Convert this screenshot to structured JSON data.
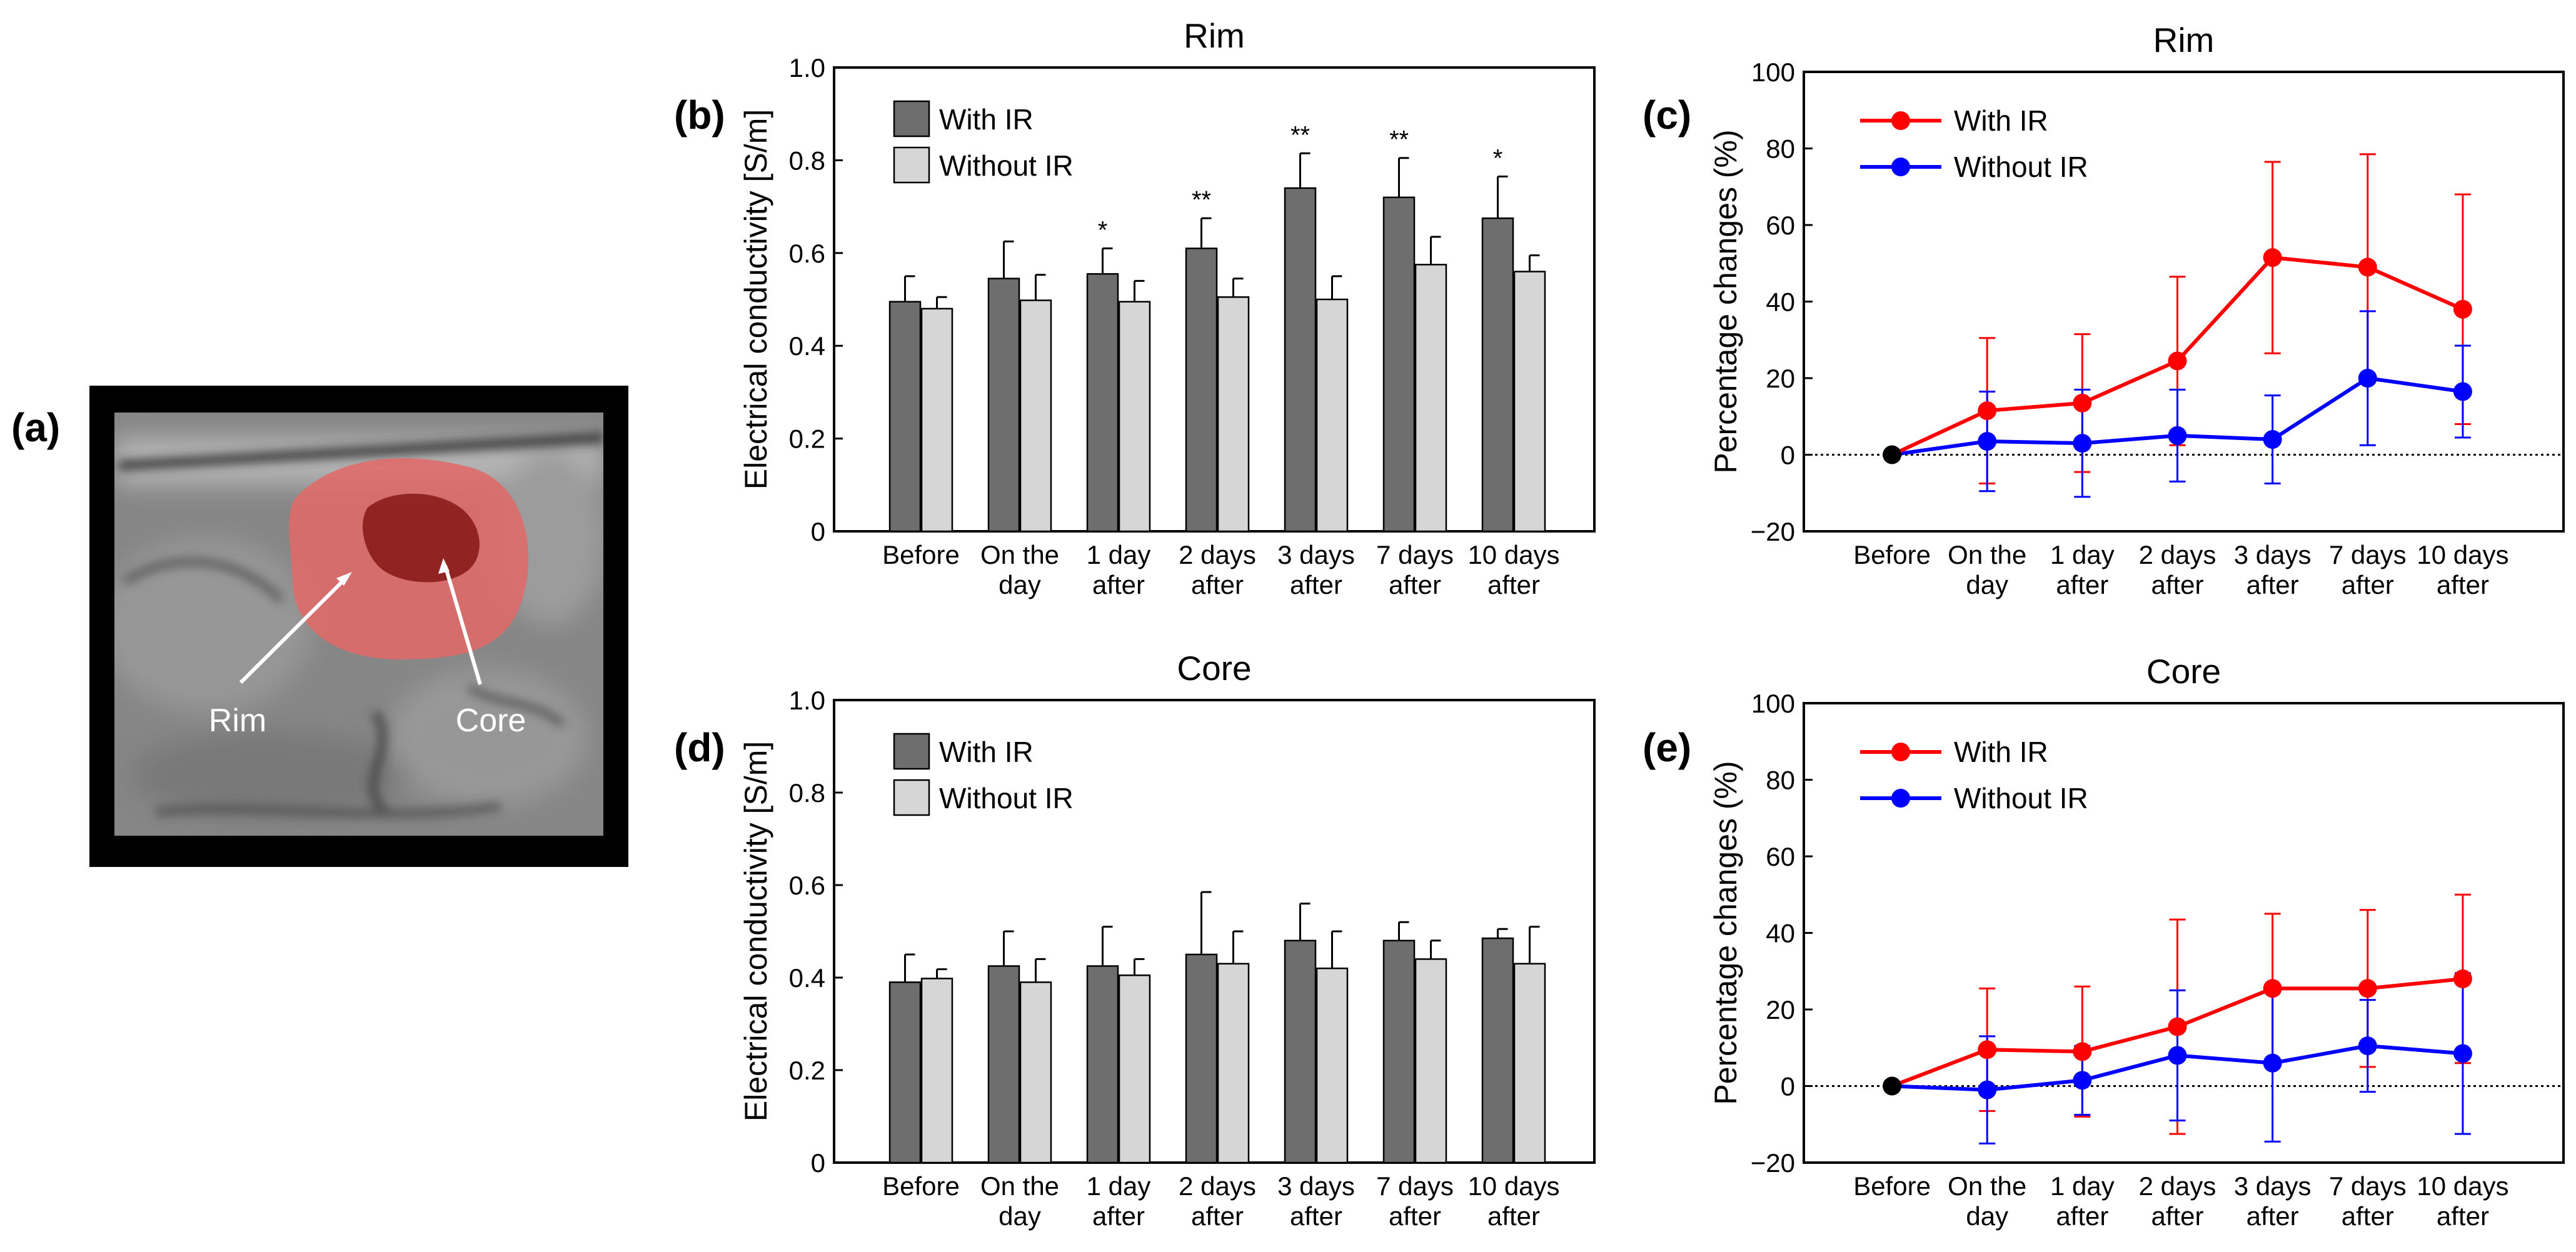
{
  "panel_labels": {
    "a": "(a)",
    "b": "(b)",
    "c": "(c)",
    "d": "(d)",
    "e": "(e)"
  },
  "mri": {
    "rim_label": "Rim",
    "core_label": "Core",
    "rim_color": "#e06a6a",
    "core_color": "#8e2020"
  },
  "colors": {
    "with_ir_bar": "#6e6e6e",
    "without_ir_bar": "#d6d6d6",
    "with_ir_line": "#ff0000",
    "without_ir_line": "#0000ff",
    "baseline_point": "#000000"
  },
  "chart_data": [
    {
      "id": "b",
      "type": "bar",
      "title": "Rim",
      "ylabel": "Electrical conductivity [S/m]",
      "ylim": [
        0,
        1.0
      ],
      "yticks": [
        "0",
        "0.2",
        "0.4",
        "0.6",
        "0.8",
        "1.0"
      ],
      "categories": [
        [
          "Before"
        ],
        [
          "On the",
          "day"
        ],
        [
          "1 day",
          "after"
        ],
        [
          "2 days",
          "after"
        ],
        [
          "3 days",
          "after"
        ],
        [
          "7 days",
          "after"
        ],
        [
          "10 days",
          "after"
        ]
      ],
      "series": [
        {
          "name": "With IR",
          "values": [
            0.495,
            0.545,
            0.555,
            0.61,
            0.74,
            0.72,
            0.675
          ],
          "errors": [
            0.055,
            0.08,
            0.055,
            0.065,
            0.075,
            0.085,
            0.09
          ]
        },
        {
          "name": "Without IR",
          "values": [
            0.48,
            0.498,
            0.495,
            0.505,
            0.5,
            0.575,
            0.56
          ],
          "errors": [
            0.025,
            0.055,
            0.045,
            0.04,
            0.05,
            0.06,
            0.035
          ]
        }
      ],
      "significance": [
        "",
        "",
        "*",
        "**",
        "**",
        "**",
        "*"
      ],
      "legend": "top-left"
    },
    {
      "id": "c",
      "type": "line",
      "title": "Rim",
      "ylabel": "Percentage changes (%)",
      "ylim": [
        -20,
        100
      ],
      "yticks": [
        "−20",
        "0",
        "20",
        "40",
        "60",
        "80",
        "100"
      ],
      "categories": [
        [
          "Before"
        ],
        [
          "On the",
          "day"
        ],
        [
          "1 day",
          "after"
        ],
        [
          "2 days",
          "after"
        ],
        [
          "3 days",
          "after"
        ],
        [
          "7 days",
          "after"
        ],
        [
          "10 days",
          "after"
        ]
      ],
      "series": [
        {
          "name": "With IR",
          "values": [
            0,
            11.5,
            13.5,
            24.5,
            51.5,
            49,
            38
          ],
          "errors": [
            0,
            19,
            18,
            22,
            25,
            29.5,
            30
          ]
        },
        {
          "name": "Without IR",
          "values": [
            0,
            3.5,
            3,
            5,
            4,
            20,
            16.5
          ],
          "errors": [
            0,
            13,
            14,
            12,
            11.5,
            17.5,
            12
          ]
        }
      ],
      "baseline": 0,
      "legend": "top-left"
    },
    {
      "id": "d",
      "type": "bar",
      "title": "Core",
      "ylabel": "Electrical conductivity [S/m]",
      "ylim": [
        0,
        1.0
      ],
      "yticks": [
        "0",
        "0.2",
        "0.4",
        "0.6",
        "0.8",
        "1.0"
      ],
      "categories": [
        [
          "Before"
        ],
        [
          "On the",
          "day"
        ],
        [
          "1 day",
          "after"
        ],
        [
          "2 days",
          "after"
        ],
        [
          "3 days",
          "after"
        ],
        [
          "7 days",
          "after"
        ],
        [
          "10 days",
          "after"
        ]
      ],
      "series": [
        {
          "name": "With IR",
          "values": [
            0.39,
            0.425,
            0.425,
            0.45,
            0.48,
            0.48,
            0.485
          ],
          "errors": [
            0.06,
            0.075,
            0.085,
            0.135,
            0.08,
            0.04,
            0.02
          ]
        },
        {
          "name": "Without IR",
          "values": [
            0.398,
            0.39,
            0.405,
            0.43,
            0.42,
            0.44,
            0.43
          ],
          "errors": [
            0.02,
            0.05,
            0.035,
            0.07,
            0.08,
            0.04,
            0.08
          ]
        }
      ],
      "significance": [
        "",
        "",
        "",
        "",
        "",
        "",
        ""
      ],
      "legend": "top-left"
    },
    {
      "id": "e",
      "type": "line",
      "title": "Core",
      "ylabel": "Percentage changes (%)",
      "ylim": [
        -20,
        100
      ],
      "yticks": [
        "−20",
        "0",
        "20",
        "40",
        "60",
        "80",
        "100"
      ],
      "categories": [
        [
          "Before"
        ],
        [
          "On the",
          "day"
        ],
        [
          "1 day",
          "after"
        ],
        [
          "2 days",
          "after"
        ],
        [
          "3 days",
          "after"
        ],
        [
          "7 days",
          "after"
        ],
        [
          "10 days",
          "after"
        ]
      ],
      "series": [
        {
          "name": "With IR",
          "values": [
            0,
            9.5,
            9,
            15.5,
            25.5,
            25.5,
            28
          ],
          "errors": [
            0,
            16,
            17,
            28,
            19.5,
            20.5,
            22
          ]
        },
        {
          "name": "Without IR",
          "values": [
            0,
            -1,
            1.5,
            8,
            6,
            10.5,
            8.5
          ],
          "errors": [
            0,
            14,
            9,
            17,
            20.5,
            12,
            21
          ]
        }
      ],
      "baseline": 0,
      "legend": "top-left"
    }
  ]
}
